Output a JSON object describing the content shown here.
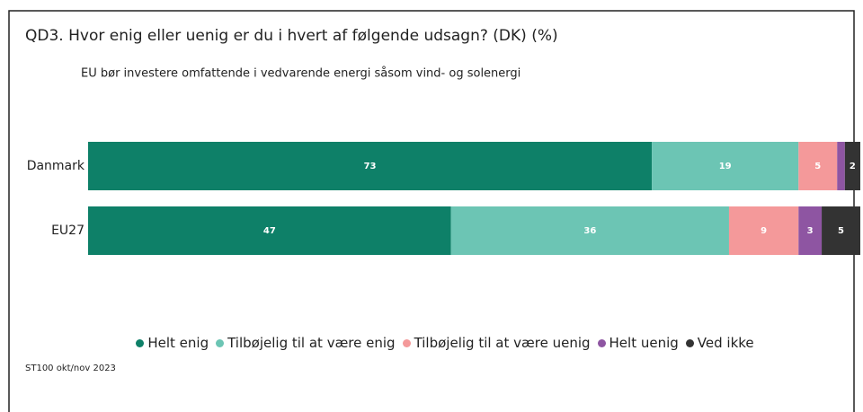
{
  "chart_data": {
    "type": "stacked-bar-horizontal",
    "title": "QD3. Hvor enig eller uenig er du i hvert af følgende udsagn? (DK) (%)",
    "subtitle": "EU bør investere omfattende i vedvarende energi såsom vind- og solenergi",
    "source": "ST100 okt/nov 2023",
    "categories": [
      "Danmark",
      "EU27"
    ],
    "series": [
      {
        "name": "Helt enig",
        "color": "#0e8068",
        "values": [
          73,
          47
        ]
      },
      {
        "name": "Tilbøjelig til at være enig",
        "color": "#6cc5b4",
        "values": [
          19,
          36
        ]
      },
      {
        "name": "Tilbøjelig til at være uenig",
        "color": "#f4999a",
        "values": [
          5,
          9
        ]
      },
      {
        "name": "Helt uenig",
        "color": "#8e55a2",
        "values": [
          1,
          3
        ]
      },
      {
        "name": "Ved ikke",
        "color": "#333333",
        "values": [
          2,
          5
        ]
      }
    ],
    "xlim": [
      0,
      100
    ],
    "legend": "bottom"
  }
}
